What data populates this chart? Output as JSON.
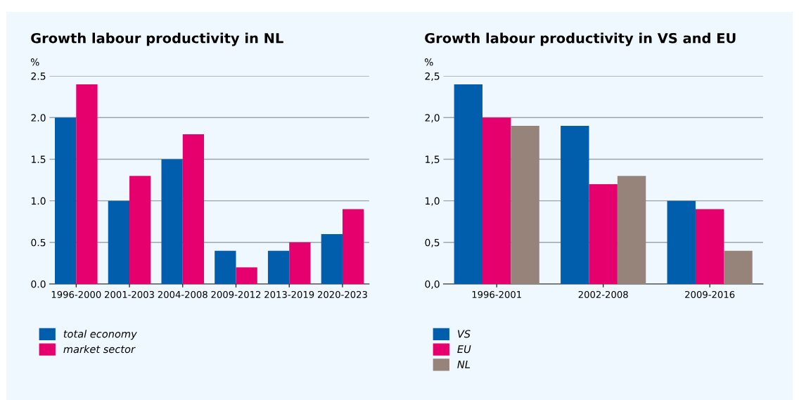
{
  "chart_data": [
    {
      "type": "bar",
      "title": "Growth labour productivity in NL",
      "ylabel": "%",
      "categories": [
        "1996-2000",
        "2001-2003",
        "2004-2008",
        "2009-2012",
        "2013-2019",
        "2020-2023"
      ],
      "series": [
        {
          "name": "total economy",
          "color": "#005eac",
          "values": [
            2.0,
            1.0,
            1.5,
            0.4,
            0.4,
            0.6
          ]
        },
        {
          "name": "market sector",
          "color": "#e5006d",
          "values": [
            2.4,
            1.3,
            1.8,
            0.2,
            0.5,
            0.9
          ]
        }
      ],
      "ylim": [
        0,
        2.5
      ],
      "yticks": [
        {
          "value": 0,
          "label": "0.0"
        },
        {
          "value": 0.5,
          "label": "0.5"
        },
        {
          "value": 1,
          "label": "1.0"
        },
        {
          "value": 1.5,
          "label": "1.5"
        },
        {
          "value": 2,
          "label": "2.0"
        },
        {
          "value": 2.5,
          "label": "2.5"
        }
      ],
      "grid": "y",
      "legend": "bottom"
    },
    {
      "type": "bar",
      "title": "Growth labour productivity in VS and EU",
      "ylabel": "%",
      "categories": [
        "1996-2001",
        "2002-2008",
        "2009-2016"
      ],
      "series": [
        {
          "name": "VS",
          "color": "#005eac",
          "values": [
            2.4,
            1.9,
            1.0
          ]
        },
        {
          "name": "EU",
          "color": "#e5006d",
          "values": [
            2.0,
            1.2,
            0.9
          ]
        },
        {
          "name": "NL",
          "color": "#96847b",
          "values": [
            1.9,
            1.3,
            0.4
          ]
        }
      ],
      "ylim": [
        0,
        2.5
      ],
      "yticks": [
        {
          "value": 0,
          "label": "0,0"
        },
        {
          "value": 0.5,
          "label": "0,5"
        },
        {
          "value": 1,
          "label": "1,0"
        },
        {
          "value": 1.5,
          "label": "1,5"
        },
        {
          "value": 2,
          "label": "2,0"
        },
        {
          "value": 2.5,
          "label": "2,5"
        }
      ],
      "grid": "y",
      "legend": "bottom"
    }
  ]
}
